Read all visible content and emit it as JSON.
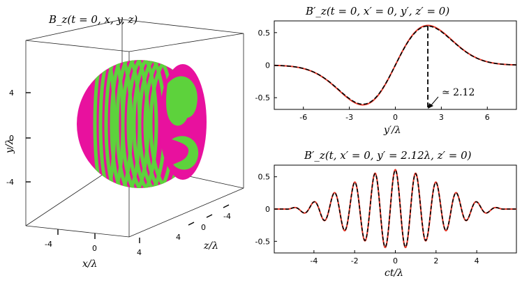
{
  "colors": {
    "red": "#e8392a",
    "black": "#000000",
    "magenta": "#e8119e",
    "green": "#5dd23c"
  },
  "chart_data": [
    {
      "type": "surface-3d",
      "title": "B_z(t = 0, x, y, z)",
      "xlabel": "x/λ",
      "ylabel": "y/λ",
      "zlabel": "z/λ",
      "xticks": [
        "-4",
        "0",
        "4"
      ],
      "yticks": [
        "4",
        "0",
        "-4"
      ],
      "zticks": [
        "-4",
        "0",
        "4"
      ],
      "description_colors": [
        "magenta",
        "green"
      ]
    },
    {
      "type": "line",
      "title": "B′_z(t = 0, x′ = 0, y′, z′ = 0)",
      "xlabel": "y′/λ",
      "ylabel": "",
      "xlim": [
        -7.9,
        7.9
      ],
      "ylim": [
        -0.68,
        0.68
      ],
      "xticks": [
        "-6",
        "-3",
        "0",
        "3",
        "6"
      ],
      "yticks": [
        "0.5",
        "0",
        "-0.5"
      ],
      "series": [
        {
          "color": "red",
          "style": "solid",
          "amplitude": 0.61,
          "peak_at": 2.12
        },
        {
          "color": "black",
          "style": "dashed",
          "amplitude": 0.6,
          "peak_at": 2.12
        }
      ],
      "annotation": {
        "text": "≃ 2.12",
        "x": 2.12
      }
    },
    {
      "type": "line",
      "title": "B′_z(t, x′ = 0, y′ = 2.12λ, z′ = 0)",
      "xlabel": "ct/λ",
      "ylabel": "",
      "xlim": [
        -5.95,
        5.95
      ],
      "ylim": [
        -0.68,
        0.68
      ],
      "xticks": [
        "-4",
        "-2",
        "0",
        "2",
        "4"
      ],
      "yticks": [
        "0.5",
        "0",
        "-0.5"
      ],
      "series": [
        {
          "color": "red",
          "style": "solid",
          "amplitude": 0.61,
          "period": 1.0
        },
        {
          "color": "black",
          "style": "dashed",
          "amplitude": 0.6,
          "period": 1.0
        }
      ]
    }
  ]
}
